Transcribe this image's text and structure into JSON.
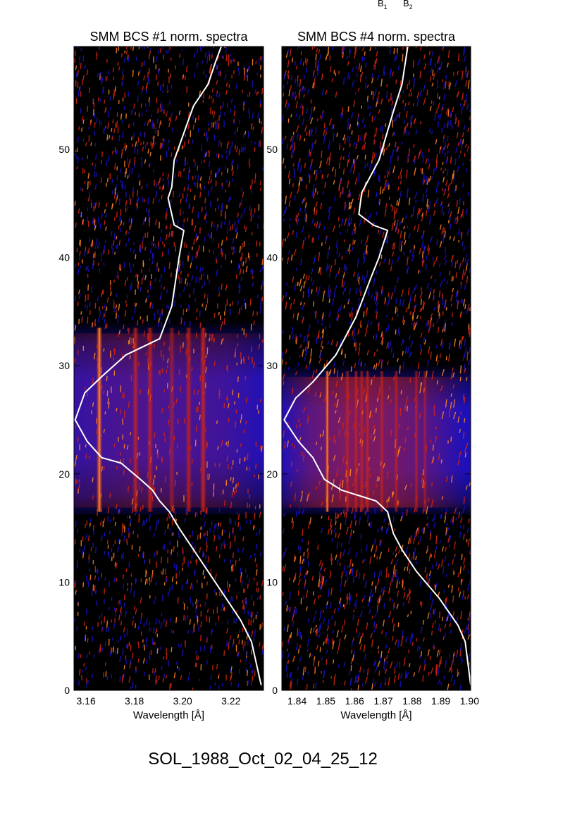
{
  "header_marks": {
    "b1": "B",
    "b1_sub": "1",
    "b2": "B",
    "b2_sub": "2"
  },
  "footer": {
    "event_id": "SOL_1988_Oct_02_04_25_12"
  },
  "colors": {
    "background": "#000000",
    "blue": "#1a10c8",
    "red": "#d42410",
    "orange": "#ff8a28",
    "profile": "#ffffff"
  },
  "chart_data": [
    {
      "type": "heatmap",
      "title": "SMM BCS #1 norm. spectra",
      "xlabel": "Wavelength [Å]",
      "ylabel": "",
      "xlim": [
        3.155,
        3.2335
      ],
      "ylim": [
        0,
        59.5
      ],
      "x_ticks": [
        3.16,
        3.18,
        3.2,
        3.22
      ],
      "x_tick_labels": [
        "3.16",
        "3.18",
        "3.20",
        "3.22"
      ],
      "y_ticks": [
        0,
        10,
        20,
        30,
        40,
        50
      ],
      "y_tick_labels": [
        "0",
        "10",
        "20",
        "30",
        "40",
        "50"
      ],
      "flare_band": [
        16.5,
        33.5
      ],
      "emission_lines": [
        {
          "wavelength": 3.1655,
          "strength": 1.0
        },
        {
          "wavelength": 3.1805,
          "strength": 0.7
        },
        {
          "wavelength": 3.1865,
          "strength": 0.65
        },
        {
          "wavelength": 3.1955,
          "strength": 0.35
        },
        {
          "wavelength": 3.2025,
          "strength": 0.6
        },
        {
          "wavelength": 3.2085,
          "strength": 0.85
        }
      ],
      "profile_curve": {
        "x": [
          3.2325,
          3.2285,
          3.224,
          3.215,
          3.206,
          3.1985,
          3.1945,
          3.1905,
          3.1875,
          3.1825,
          3.1745,
          3.1665,
          3.1605,
          3.1555,
          3.1595,
          3.1665,
          3.1765,
          3.1905,
          3.1955,
          3.1985,
          3.2005,
          3.1965,
          3.194,
          3.1955,
          3.1965,
          3.2045,
          3.2105,
          3.2135,
          3.216
        ],
        "y": [
          0.5,
          4.5,
          6.5,
          9.5,
          12.5,
          15.0,
          16.5,
          17.5,
          18.5,
          19.5,
          21.0,
          21.5,
          23.0,
          25.0,
          27.5,
          29.0,
          31.0,
          32.5,
          35.5,
          40.0,
          42.5,
          43.0,
          45.5,
          46.5,
          49.0,
          54.0,
          56.0,
          58.0,
          59.5
        ]
      }
    },
    {
      "type": "heatmap",
      "title": "SMM BCS #4 norm. spectra",
      "xlabel": "Wavelength [Å]",
      "ylabel": "",
      "xlim": [
        1.8347,
        1.9004
      ],
      "ylim": [
        0,
        59.5
      ],
      "x_ticks": [
        1.84,
        1.85,
        1.86,
        1.87,
        1.88,
        1.89,
        1.9
      ],
      "x_tick_labels": [
        "1.84",
        "1.85",
        "1.86",
        "1.87",
        "1.88",
        "1.89",
        "1.90"
      ],
      "y_ticks": [
        0,
        10,
        20,
        30,
        40,
        50
      ],
      "y_tick_labels": [
        "0",
        "10",
        "20",
        "30",
        "40",
        "50"
      ],
      "flare_band": [
        16.5,
        29.5
      ],
      "emission_lines": [
        {
          "wavelength": 1.8505,
          "strength": 1.0
        },
        {
          "wavelength": 1.8575,
          "strength": 0.55
        },
        {
          "wavelength": 1.8605,
          "strength": 0.6
        },
        {
          "wavelength": 1.8625,
          "strength": 0.55
        },
        {
          "wavelength": 1.8645,
          "strength": 0.6
        },
        {
          "wavelength": 1.8695,
          "strength": 0.55
        },
        {
          "wavelength": 1.8745,
          "strength": 0.5
        },
        {
          "wavelength": 1.8815,
          "strength": 0.45
        },
        {
          "wavelength": 1.8845,
          "strength": 0.35
        }
      ],
      "profile_curve": {
        "x": [
          1.9004,
          1.8985,
          1.896,
          1.8895,
          1.8815,
          1.8765,
          1.8735,
          1.8715,
          1.8675,
          1.8615,
          1.8555,
          1.8495,
          1.8455,
          1.8405,
          1.8355,
          1.8395,
          1.8455,
          1.8535,
          1.8605,
          1.8655,
          1.8685,
          1.8715,
          1.8665,
          1.8615,
          1.8625,
          1.8635,
          1.8685,
          1.8735,
          1.8765,
          1.8785
        ],
        "y": [
          0.5,
          4.5,
          6.0,
          8.5,
          11.0,
          13.0,
          14.5,
          16.5,
          17.5,
          18.0,
          18.5,
          19.5,
          21.5,
          23.0,
          25.0,
          27.0,
          28.5,
          31.0,
          34.5,
          38.0,
          40.0,
          42.5,
          43.0,
          44.0,
          46.0,
          46.5,
          49.0,
          53.5,
          56.0,
          59.5
        ]
      }
    }
  ]
}
